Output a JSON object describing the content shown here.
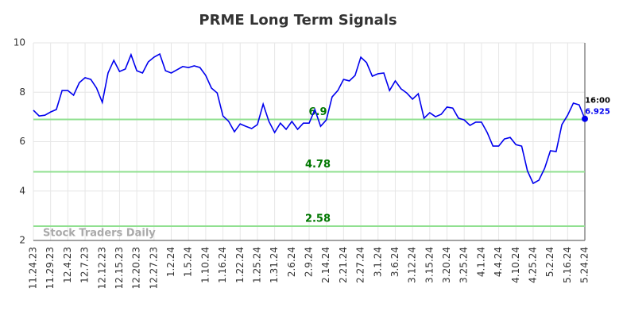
{
  "chart_data": {
    "type": "line",
    "title": "PRME Long Term Signals",
    "categories": [
      "11.24.23",
      null,
      null,
      "11.29.23",
      null,
      null,
      "12.4.23",
      null,
      null,
      "12.7.23",
      null,
      null,
      "12.12.23",
      null,
      null,
      "12.15.23",
      null,
      null,
      "12.20.23",
      null,
      null,
      "12.27.23",
      null,
      null,
      "1.2.24",
      null,
      null,
      "1.5.24",
      null,
      null,
      "1.10.24",
      null,
      null,
      "1.16.24",
      null,
      null,
      "1.22.24",
      null,
      null,
      "1.25.24",
      null,
      null,
      "1.31.24",
      null,
      null,
      "2.6.24",
      null,
      null,
      "2.9.24",
      null,
      null,
      "2.14.24",
      null,
      null,
      "2.21.24",
      null,
      null,
      "2.27.24",
      null,
      null,
      "3.1.24",
      null,
      null,
      "3.6.24",
      null,
      null,
      "3.12.24",
      null,
      null,
      "3.15.24",
      null,
      null,
      "3.20.24",
      null,
      null,
      "3.25.24",
      null,
      null,
      "4.1.24",
      null,
      null,
      "4.4.24",
      null,
      null,
      "4.10.24",
      null,
      null,
      "4.25.24",
      null,
      null,
      "5.2.24",
      null,
      null,
      "5.16.24",
      null,
      null,
      "5.24.24"
    ],
    "values": [
      7.27,
      7.04,
      7.07,
      7.2,
      7.3,
      8.07,
      8.07,
      7.88,
      8.39,
      8.59,
      8.52,
      8.17,
      7.59,
      8.78,
      9.29,
      8.84,
      8.94,
      9.52,
      8.87,
      8.78,
      9.23,
      9.42,
      9.55,
      8.87,
      8.78,
      8.91,
      9.04,
      9.0,
      9.07,
      9.0,
      8.68,
      8.17,
      7.97,
      7.04,
      6.82,
      6.4,
      6.72,
      6.62,
      6.53,
      6.69,
      7.52,
      6.82,
      6.37,
      6.75,
      6.5,
      6.82,
      6.5,
      6.75,
      6.75,
      7.3,
      6.62,
      6.88,
      7.81,
      8.07,
      8.52,
      8.46,
      8.68,
      9.42,
      9.2,
      8.65,
      8.75,
      8.78,
      8.07,
      8.46,
      8.14,
      7.97,
      7.72,
      7.94,
      6.95,
      7.17,
      7.01,
      7.11,
      7.4,
      7.36,
      6.95,
      6.88,
      6.66,
      6.79,
      6.79,
      6.37,
      5.82,
      5.82,
      6.11,
      6.17,
      5.88,
      5.82,
      4.82,
      4.31,
      4.44,
      4.92,
      5.63,
      5.6,
      6.69,
      7.07,
      7.56,
      7.49,
      6.925
    ],
    "color": "#0000ee",
    "hlines": [
      6.9,
      4.78,
      2.58
    ],
    "hline_color": "#90e090",
    "hline_label_color": "#007700",
    "last_time": "16:00",
    "watermark": "Stock Traders Daily",
    "ylim": [
      2,
      10
    ],
    "yticks": [
      2,
      4,
      6,
      8,
      10
    ],
    "grid": true
  }
}
